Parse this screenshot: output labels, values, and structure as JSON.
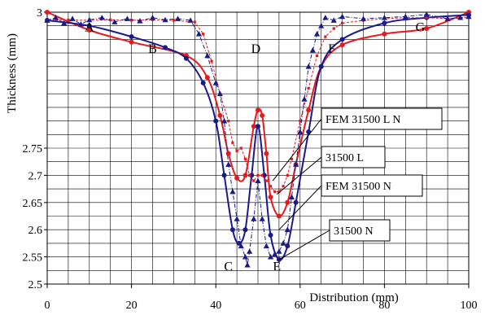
{
  "chart_data": {
    "type": "line",
    "xlabel": "Distribution (mm)",
    "ylabel": "Thickness (mm)",
    "xlim": [
      0,
      100
    ],
    "ylim": [
      2.5,
      3.0
    ],
    "x_ticks": [
      "0",
      "20",
      "40",
      "60",
      "80",
      "100"
    ],
    "y_ticks": [
      "2.5",
      "2.55",
      "2.6",
      "2.65",
      "2.7",
      "2.75",
      "3"
    ],
    "grid": true,
    "series": [
      {
        "name": "FEM 31500 L N",
        "color": "#e8191c",
        "style": "solid-circle-markers",
        "x": [
          0,
          10,
          20,
          33,
          38,
          41,
          43,
          45,
          47,
          49,
          50,
          51,
          52,
          53,
          55,
          57,
          59,
          62,
          65,
          70,
          80,
          90,
          100
        ],
        "y": [
          3.0,
          2.967,
          2.945,
          2.92,
          2.88,
          2.81,
          2.74,
          2.695,
          2.7,
          2.79,
          2.82,
          2.81,
          2.74,
          2.66,
          2.625,
          2.65,
          2.72,
          2.82,
          2.9,
          2.94,
          2.96,
          2.97,
          3.0
        ]
      },
      {
        "name": "31500 L",
        "color": "#e8191c",
        "style": "dashed-square-markers",
        "x": [
          0,
          5,
          10,
          15,
          20,
          25,
          30,
          35,
          37,
          39,
          41,
          43,
          44,
          45,
          46,
          47,
          48,
          49,
          50,
          51,
          52,
          53,
          54,
          55,
          56,
          57,
          58,
          60,
          62,
          64,
          66,
          68,
          70,
          75,
          80,
          85,
          90,
          95,
          100
        ],
        "y": [
          2.985,
          2.986,
          2.985,
          2.986,
          2.985,
          2.986,
          2.985,
          2.982,
          2.96,
          2.91,
          2.85,
          2.8,
          2.76,
          2.745,
          2.75,
          2.73,
          2.7,
          2.69,
          2.7,
          2.7,
          2.69,
          2.68,
          2.67,
          2.67,
          2.68,
          2.7,
          2.73,
          2.8,
          2.86,
          2.92,
          2.955,
          2.97,
          2.98,
          2.985,
          2.988,
          2.99,
          2.99,
          2.988,
          2.99
        ]
      },
      {
        "name": "FEM 31500 N",
        "color": "#1a1a8c",
        "style": "solid-circle-markers",
        "x": [
          0,
          10,
          20,
          28,
          33,
          37,
          40,
          42,
          44,
          45.5,
          47,
          48.5,
          50,
          51.5,
          53,
          55,
          57,
          59,
          62,
          65,
          70,
          80,
          90,
          100
        ],
        "y": [
          2.985,
          2.975,
          2.955,
          2.935,
          2.915,
          2.87,
          2.8,
          2.7,
          2.6,
          2.575,
          2.6,
          2.7,
          2.79,
          2.7,
          2.59,
          2.545,
          2.57,
          2.65,
          2.78,
          2.9,
          2.95,
          2.98,
          2.99,
          2.995
        ]
      },
      {
        "name": "31500 N",
        "color": "#1a1a8c",
        "style": "dashdot-triangle-markers",
        "x": [
          0,
          2,
          4,
          6,
          8,
          10,
          13,
          16,
          19,
          22,
          25,
          28,
          31,
          34,
          36,
          38,
          40,
          41,
          42,
          43,
          44,
          45,
          46,
          47,
          47.5,
          48,
          49,
          50,
          51,
          52,
          53,
          54,
          55,
          56,
          57,
          58,
          59,
          60,
          61,
          62,
          63,
          64,
          65,
          66,
          68,
          70,
          75,
          80,
          85,
          90,
          95,
          98,
          100
        ],
        "y": [
          2.985,
          2.99,
          2.98,
          2.988,
          2.978,
          2.986,
          2.99,
          2.982,
          2.988,
          2.984,
          2.99,
          2.986,
          2.988,
          2.985,
          2.96,
          2.92,
          2.87,
          2.85,
          2.8,
          2.72,
          2.67,
          2.62,
          2.57,
          2.55,
          2.535,
          2.56,
          2.62,
          2.69,
          2.62,
          2.57,
          2.55,
          2.555,
          2.56,
          2.575,
          2.6,
          2.66,
          2.72,
          2.78,
          2.84,
          2.9,
          2.93,
          2.96,
          2.975,
          2.99,
          2.985,
          2.992,
          2.988,
          2.99,
          2.992,
          2.996,
          2.988,
          2.99,
          2.992
        ]
      }
    ],
    "point_labels": [
      {
        "text": "A",
        "x": 10,
        "y": 2.965
      },
      {
        "text": "B",
        "x": 25,
        "y": 2.925
      },
      {
        "text": "C",
        "x": 43,
        "y": 2.525
      },
      {
        "text": "D",
        "x": 49.5,
        "y": 2.925
      },
      {
        "text": "E",
        "x": 54.5,
        "y": 2.525
      },
      {
        "text": "F",
        "x": 67.5,
        "y": 2.925
      },
      {
        "text": "G",
        "x": 88.5,
        "y": 2.965
      }
    ],
    "callouts": [
      {
        "text": "FEM 31500 L N",
        "target_x": 53.5,
        "target_y": 2.69
      },
      {
        "text": "31500 L",
        "target_x": 54.5,
        "target_y": 2.665
      },
      {
        "text": "FEM 31500 N",
        "target_x": 55,
        "target_y": 2.6
      },
      {
        "text": "31500 N",
        "target_x": 55,
        "target_y": 2.545
      }
    ]
  }
}
